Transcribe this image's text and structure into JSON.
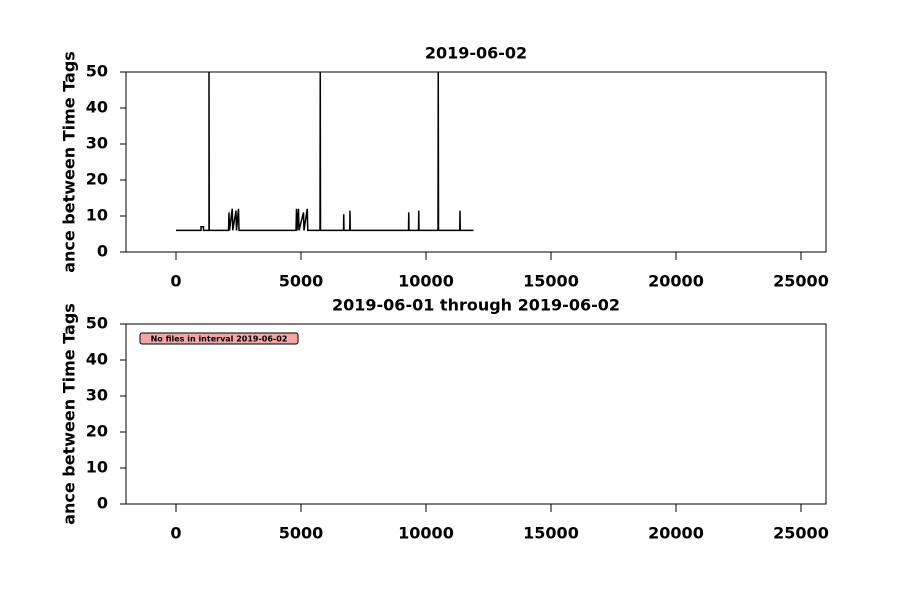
{
  "chart_data": [
    {
      "type": "line",
      "title": "2019-06-02",
      "y_label": "ance between Time Tags",
      "xlim": [
        -2000,
        26000
      ],
      "xticks": [
        0,
        5000,
        10000,
        15000,
        20000,
        25000
      ],
      "ylim": [
        0,
        50
      ],
      "yticks": [
        0,
        10,
        20,
        30,
        40,
        50
      ],
      "series": [
        {
          "color": "#000000",
          "x": [
            0,
            1000,
            1000,
            1100,
            1100,
            1320,
            1320,
            1330,
            2100,
            2120,
            2140,
            2250,
            2270,
            2400,
            2420,
            2500,
            2520,
            4800,
            4820,
            4840,
            4900,
            4920,
            5100,
            5120,
            5250,
            5270,
            5760,
            5770,
            5780,
            6700,
            6710,
            6720,
            6950,
            6960,
            6970,
            9300,
            9310,
            9320,
            9700,
            9710,
            9720,
            10480,
            10490,
            10500,
            11350,
            11360,
            11370,
            11900
          ],
          "values": [
            6,
            6,
            7,
            7,
            6,
            6,
            50,
            6,
            6,
            11,
            6,
            12,
            6,
            11.5,
            6,
            12,
            6,
            6,
            12,
            6,
            12,
            6,
            11,
            6,
            12,
            6,
            6,
            50,
            6,
            6,
            10.5,
            6,
            6,
            11.5,
            6,
            6,
            11,
            6,
            6,
            11.5,
            6,
            6,
            50,
            6,
            6,
            11.5,
            6,
            6
          ]
        }
      ]
    },
    {
      "type": "line",
      "title": "2019-06-01 through 2019-06-02",
      "y_label": "ance between Time Tags",
      "annotation": "No files in interval 2019-06-02",
      "xlim": [
        -2000,
        26000
      ],
      "xticks": [
        0,
        5000,
        10000,
        15000,
        20000,
        25000
      ],
      "ylim": [
        0,
        50
      ],
      "yticks": [
        0,
        10,
        20,
        30,
        40,
        50
      ],
      "series": []
    }
  ]
}
